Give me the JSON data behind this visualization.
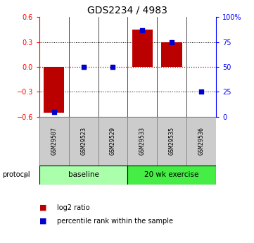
{
  "title": "GDS2234 / 4983",
  "samples": [
    "GSM29507",
    "GSM29523",
    "GSM29529",
    "GSM29533",
    "GSM29535",
    "GSM29536"
  ],
  "log2_ratio": [
    -0.55,
    0.0,
    0.0,
    0.45,
    0.3,
    0.0
  ],
  "percentile_rank": [
    5,
    50,
    50,
    87,
    75,
    25
  ],
  "ylim_left": [
    -0.6,
    0.6
  ],
  "ylim_right": [
    0,
    100
  ],
  "left_ticks": [
    -0.6,
    -0.3,
    0.0,
    0.3,
    0.6
  ],
  "right_ticks": [
    0,
    25,
    50,
    75,
    100
  ],
  "right_tick_labels": [
    "0",
    "25",
    "50",
    "75",
    "100%"
  ],
  "bar_color": "#bb0000",
  "dot_color": "#0000cc",
  "hline_color": "#dd0000",
  "grid_color": "#000000",
  "protocol_groups": [
    {
      "label": "baseline",
      "samples": [
        0,
        1,
        2
      ],
      "color": "#aaffaa"
    },
    {
      "label": "20 wk exercise",
      "samples": [
        3,
        4,
        5
      ],
      "color": "#44ee44"
    }
  ],
  "protocol_label": "protocol",
  "legend_items": [
    {
      "label": "log2 ratio",
      "color": "#bb0000"
    },
    {
      "label": "percentile rank within the sample",
      "color": "#0000cc"
    }
  ],
  "bar_width": 0.7,
  "dot_size": 22,
  "title_fontsize": 10,
  "tick_fontsize": 7,
  "sample_fontsize": 6,
  "legend_fontsize": 7,
  "background_color": "#ffffff",
  "sample_box_color": "#cccccc",
  "sample_box_edge": "#888888"
}
